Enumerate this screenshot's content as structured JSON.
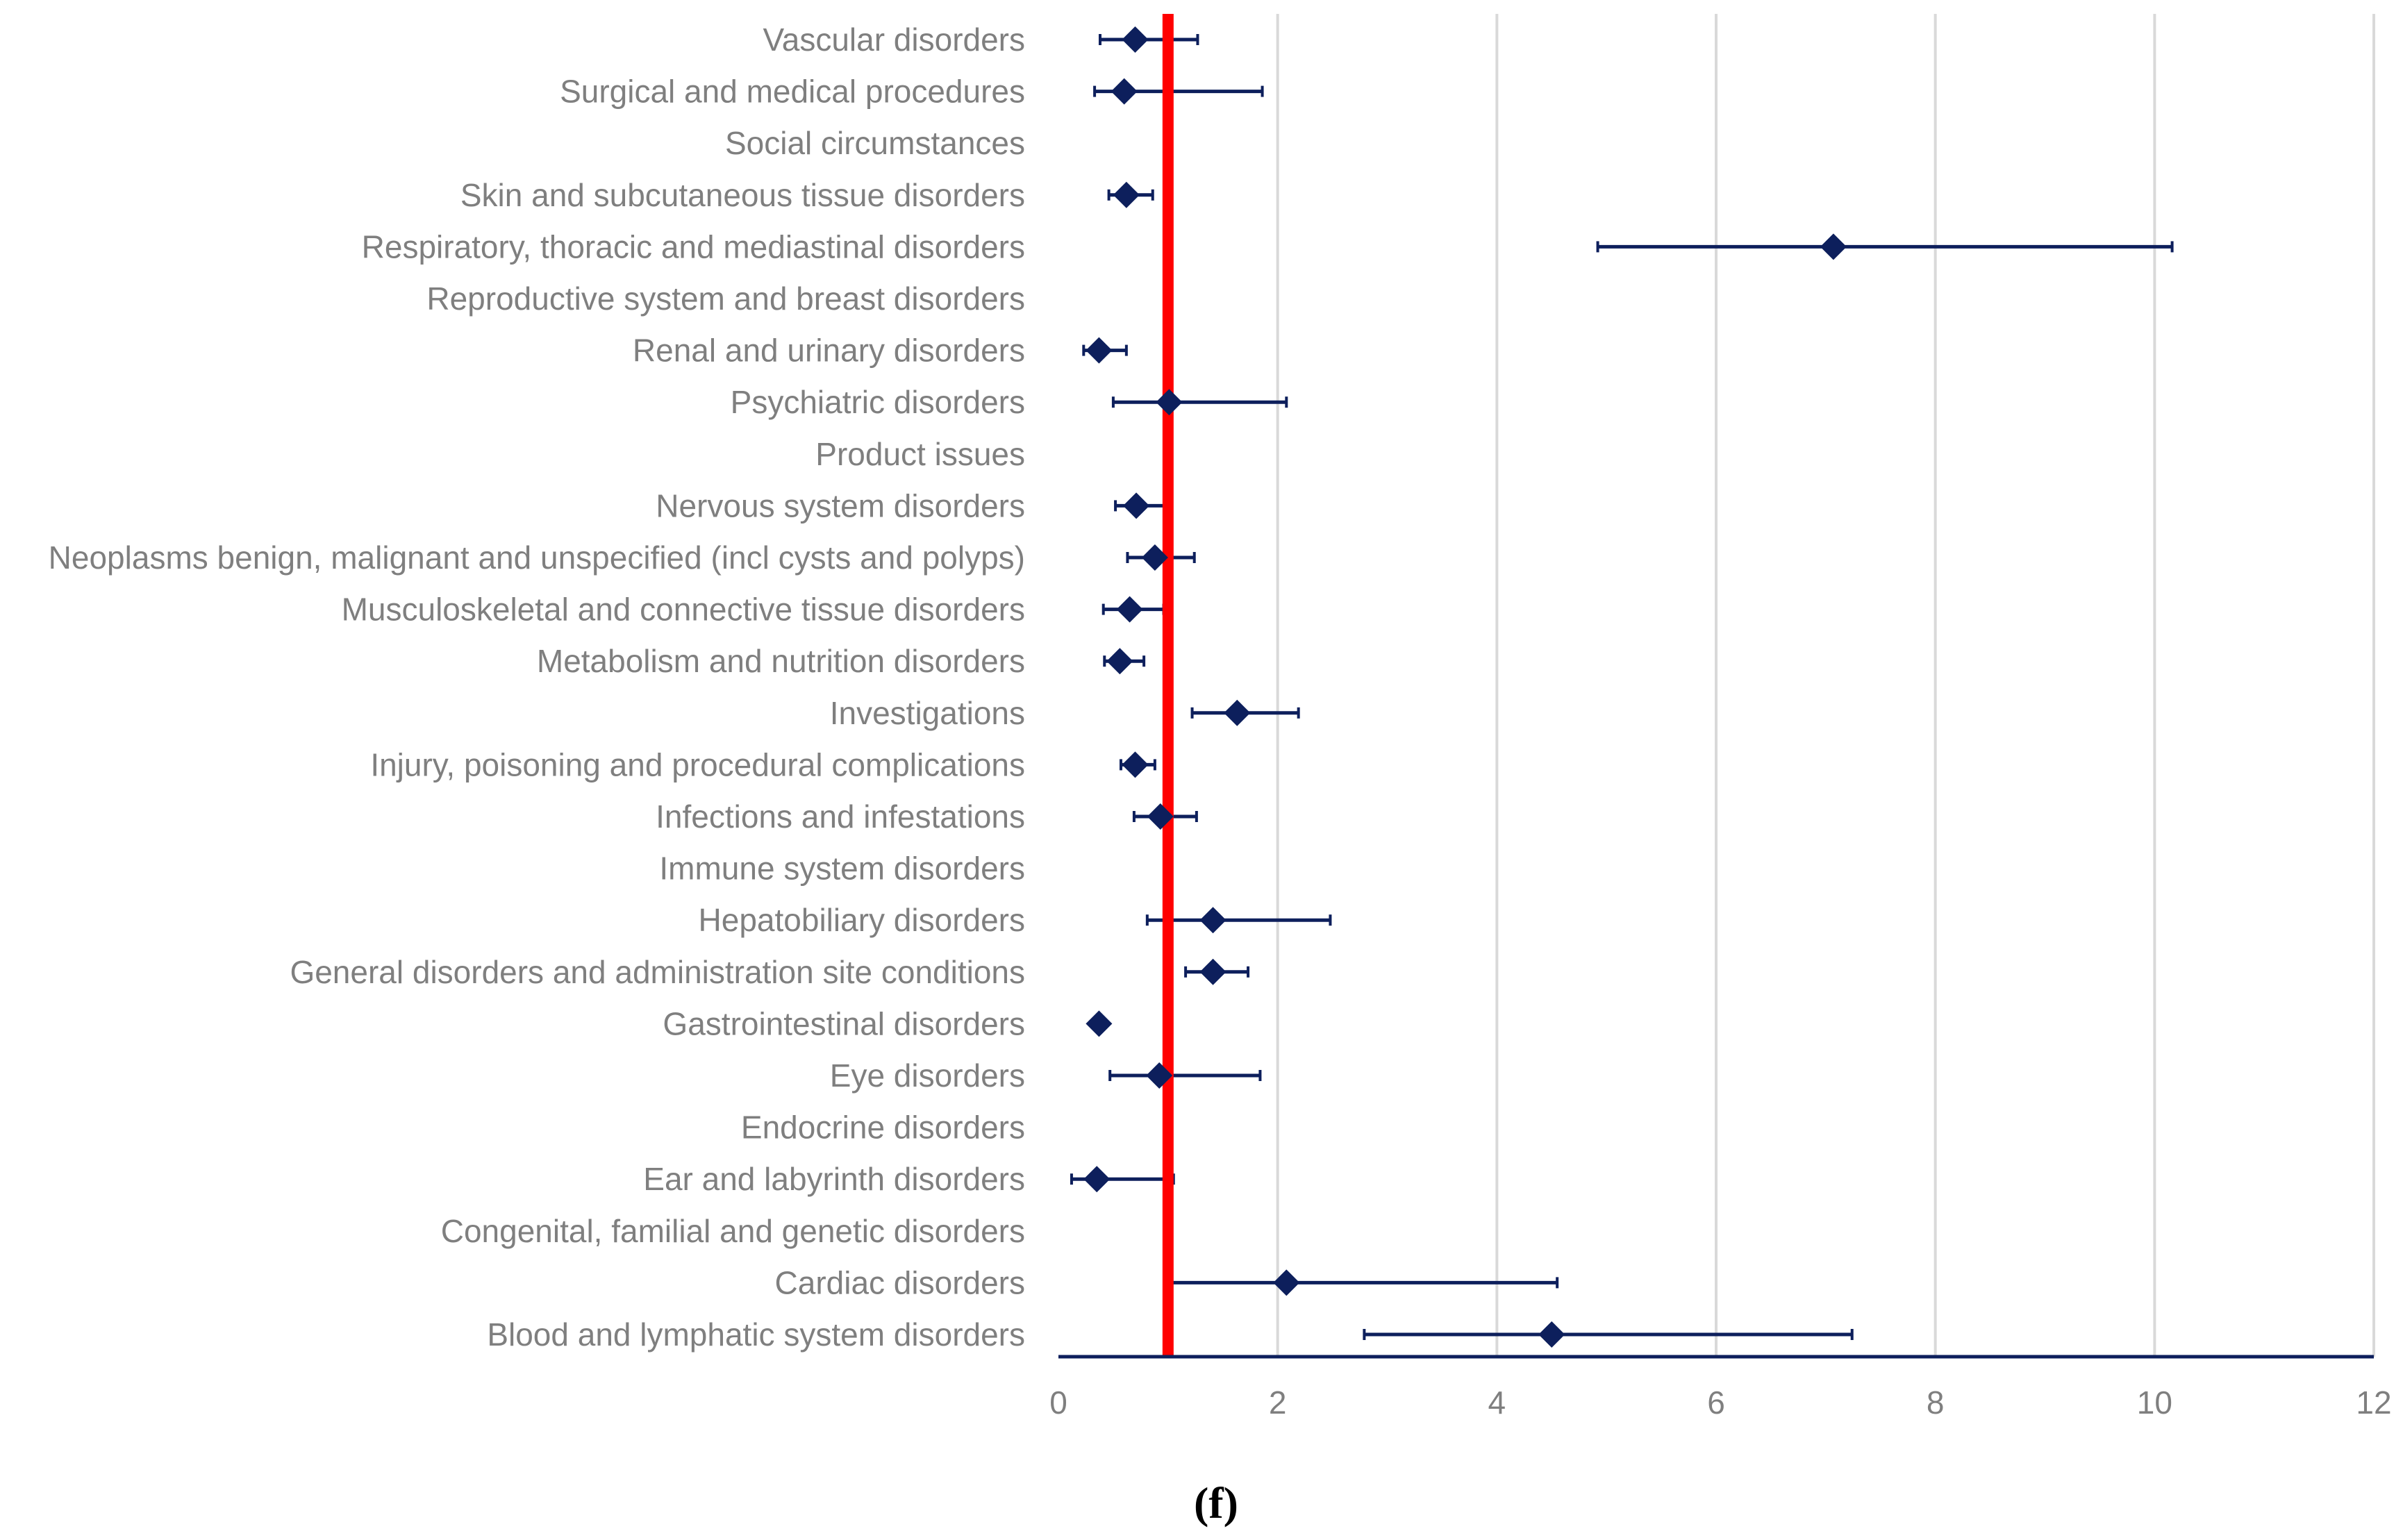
{
  "chart_data": {
    "type": "forest",
    "title": "",
    "xlabel": "",
    "ylabel": "",
    "panel_label": "(f)",
    "xlim": [
      0,
      12
    ],
    "x_ticks": [
      "0",
      "2",
      "4",
      "6",
      "8",
      "10",
      "12"
    ],
    "reference_line": 1,
    "grid": "vertical",
    "colors": {
      "marker": "#0d1f5c",
      "reference": "#ff0000",
      "grid": "#d9d9d9",
      "axis": "#0d1f5c",
      "text": "#7f7f7f"
    },
    "rows": [
      {
        "label": "Vascular disorders",
        "value": 0.7,
        "low": 0.38,
        "high": 1.27
      },
      {
        "label": "Surgical and medical procedures",
        "value": 0.6,
        "low": 0.33,
        "high": 1.86
      },
      {
        "label": "Social circumstances",
        "value": null,
        "low": null,
        "high": null
      },
      {
        "label": "Skin and subcutaneous tissue disorders",
        "value": 0.62,
        "low": 0.46,
        "high": 0.86
      },
      {
        "label": "Respiratory, thoracic and mediastinal disorders",
        "value": 7.07,
        "low": 4.92,
        "high": 10.16
      },
      {
        "label": "Reproductive system and breast disorders",
        "value": null,
        "low": null,
        "high": null
      },
      {
        "label": "Renal and urinary disorders",
        "value": 0.37,
        "low": 0.23,
        "high": 0.62
      },
      {
        "label": "Psychiatric disorders",
        "value": 1.01,
        "low": 0.5,
        "high": 2.08
      },
      {
        "label": "Product issues",
        "value": null,
        "low": null,
        "high": null
      },
      {
        "label": "Nervous system disorders",
        "value": 0.71,
        "low": 0.52,
        "high": 0.97
      },
      {
        "label": "Neoplasms benign, malignant and unspecified (incl cysts and polyps)",
        "value": 0.88,
        "low": 0.63,
        "high": 1.24
      },
      {
        "label": "Musculoskeletal and connective tissue disorders",
        "value": 0.65,
        "low": 0.41,
        "high": 0.96
      },
      {
        "label": "Metabolism and nutrition disorders",
        "value": 0.56,
        "low": 0.42,
        "high": 0.78
      },
      {
        "label": "Investigations",
        "value": 1.63,
        "low": 1.22,
        "high": 2.19
      },
      {
        "label": "Injury, poisoning and procedural complications",
        "value": 0.7,
        "low": 0.57,
        "high": 0.88
      },
      {
        "label": "Infections and infestations",
        "value": 0.93,
        "low": 0.69,
        "high": 1.26
      },
      {
        "label": "Immune system disorders",
        "value": null,
        "low": null,
        "high": null
      },
      {
        "label": "Hepatobiliary disorders",
        "value": 1.41,
        "low": 0.81,
        "high": 2.48
      },
      {
        "label": "General disorders and administration site conditions",
        "value": 1.41,
        "low": 1.16,
        "high": 1.73
      },
      {
        "label": "Gastrointestinal disorders",
        "value": 0.37,
        "low": 0.32,
        "high": 0.42
      },
      {
        "label": "Eye disorders",
        "value": 0.92,
        "low": 0.47,
        "high": 1.84
      },
      {
        "label": "Endocrine disorders",
        "value": null,
        "low": null,
        "high": null
      },
      {
        "label": "Ear and labyrinth disorders",
        "value": 0.35,
        "low": 0.12,
        "high": 1.05
      },
      {
        "label": "Congenital, familial and genetic disorders",
        "value": null,
        "low": null,
        "high": null
      },
      {
        "label": "Cardiac disorders",
        "value": 2.08,
        "low": 1.03,
        "high": 4.55
      },
      {
        "label": "Blood and lymphatic system disorders",
        "value": 4.5,
        "low": 2.79,
        "high": 7.24
      }
    ]
  }
}
